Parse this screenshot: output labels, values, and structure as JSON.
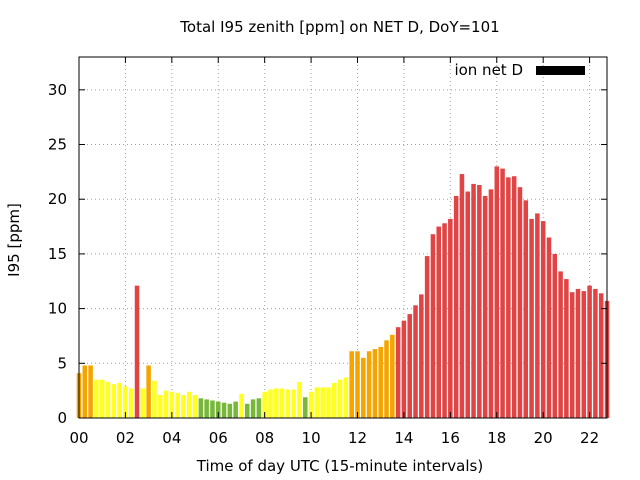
{
  "chart_data": {
    "type": "bar",
    "title": "Total I95 zenith [ppm] on NET D, DoY=101",
    "xlabel": "Time of day UTC (15-minute intervals)",
    "ylabel": "I95 [ppm]",
    "xlim": [
      0,
      22.75
    ],
    "ylim": [
      0,
      33
    ],
    "x_ticks": [
      "00",
      "02",
      "04",
      "06",
      "08",
      "10",
      "12",
      "14",
      "16",
      "18",
      "20",
      "22"
    ],
    "y_ticks": [
      0,
      5,
      10,
      15,
      20,
      25,
      30
    ],
    "grid": true,
    "legend": {
      "position": "top-right",
      "label": "ion net D",
      "color": "#000000"
    },
    "interval_hours": 0.25,
    "values": [
      4.1,
      4.8,
      4.8,
      3.5,
      3.5,
      3.3,
      3.1,
      3.2,
      2.9,
      2.7,
      12.1,
      2.7,
      4.8,
      3.4,
      2.1,
      2.5,
      2.4,
      2.3,
      2.1,
      2.4,
      2.1,
      1.8,
      1.7,
      1.6,
      1.5,
      1.4,
      1.3,
      1.5,
      2.2,
      1.3,
      1.7,
      1.8,
      2.4,
      2.6,
      2.7,
      2.7,
      2.6,
      2.6,
      3.3,
      1.9,
      2.4,
      2.8,
      2.8,
      2.8,
      3.2,
      3.5,
      3.7,
      6.1,
      6.1,
      5.5,
      6.1,
      6.3,
      6.5,
      7.1,
      7.6,
      8.3,
      8.9,
      9.5,
      10.3,
      11.3,
      14.8,
      16.8,
      17.5,
      17.8,
      18.2,
      20.3,
      22.3,
      20.7,
      21.4,
      21.3,
      20.3,
      20.9,
      23.0,
      22.8,
      22.0,
      22.1,
      21.1,
      19.9,
      18.2,
      18.7,
      18.0,
      16.5,
      15.0,
      13.4,
      12.7,
      11.5,
      11.8,
      11.6,
      12.1,
      11.8,
      11.4,
      10.7
    ],
    "color_thresholds": [
      {
        "below": 2,
        "color": "#77b83a"
      },
      {
        "below": 4,
        "color": "#ffff22"
      },
      {
        "below": 8,
        "color": "#f5a400"
      },
      {
        "below": 999,
        "color": "#e04444"
      }
    ]
  }
}
